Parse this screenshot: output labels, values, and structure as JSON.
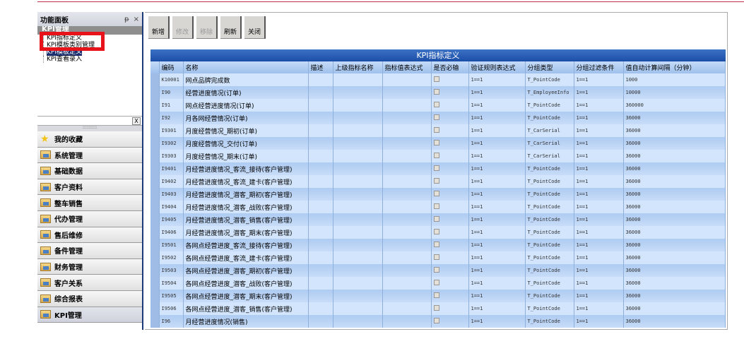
{
  "panel": {
    "title": "功能面板",
    "pin_icon": "pin-icon",
    "close_icon": "close-icon",
    "tree_title": "KPI管理",
    "tree": [
      "KPI指标定义",
      "KPI模板类别管理",
      "KPI模板定义",
      "KPI查看录入"
    ],
    "selected": 2,
    "filter_btn": "X",
    "splitter": "::::::::::"
  },
  "accordion": [
    "我的收藏",
    "系统管理",
    "基础数据",
    "客户资料",
    "整车销售",
    "代办管理",
    "售后维修",
    "备件管理",
    "财务管理",
    "客户关系",
    "综合报表",
    "KPI管理"
  ],
  "toolbar": {
    "add": "新增",
    "edit": "修改",
    "remove": "移除",
    "refresh": "刷新",
    "close": "关闭"
  },
  "grid": {
    "title": "KPI指标定义",
    "columns": [
      "编码",
      "名称",
      "描述",
      "上级指标名称",
      "指标值表达式",
      "是否必输",
      "验证规则表达式",
      "分组类型",
      "分组过滤条件",
      "值自动计算间隔（分钟）"
    ],
    "rows": [
      [
        "K10001",
        "网点品牌完成数",
        "1==1",
        "T_PointCode",
        "1==1",
        "1000"
      ],
      [
        "I90",
        "经营进度情况(订单)",
        "1==1",
        "T_EmployeeInfo",
        "1==1",
        "10000"
      ],
      [
        "I91",
        "网点经营进度情况(订单)",
        "1==1",
        "T_PointCode",
        "1==1",
        "360000"
      ],
      [
        "I92",
        "月各网经营情况(订单)",
        "1==1",
        "T_PointCode",
        "1==1",
        "36000"
      ],
      [
        "I9301",
        "月度经营情况_期初(订单)",
        "1==1",
        "T_CarSerial",
        "1==1",
        "36000"
      ],
      [
        "I9302",
        "月度经营情况_交付(订单)",
        "1==1",
        "T_CarSerial",
        "1==1",
        "36000"
      ],
      [
        "I9303",
        "月度经营情况_期末(订单)",
        "1==1",
        "T_CarSerial",
        "1==1",
        "36000"
      ],
      [
        "I9401",
        "月经营进度情况_客流_接待(客户管理)",
        "1==1",
        "T_PointCode",
        "1==1",
        "36000"
      ],
      [
        "I9402",
        "月经营进度情况_客流_建卡(客户管理)",
        "1==1",
        "T_PointCode",
        "1==1",
        "36000"
      ],
      [
        "I9403",
        "月经营进度情况_潜客_期初(客户管理)",
        "1==1",
        "T_PointCode",
        "1==1",
        "36000"
      ],
      [
        "I9404",
        "月经营进度情况_潜客_战败(客户管理)",
        "1==1",
        "T_PointCode",
        "1==1",
        "36000"
      ],
      [
        "I9405",
        "月经营进度情况_潜客_销售(客户管理)",
        "1==1",
        "T_PointCode",
        "1==1",
        "36000"
      ],
      [
        "I9406",
        "月经营进度情况_潜客_期末(客户管理)",
        "1==1",
        "T_PointCode",
        "1==1",
        "36000"
      ],
      [
        "I9501",
        "各网点经营进度_客流_接待(客户管理)",
        "1==1",
        "T_PointCode",
        "1==1",
        "36000"
      ],
      [
        "I9502",
        "各网点经营进度_客流_建卡(客户管理)",
        "1==1",
        "T_PointCode",
        "1==1",
        "36000"
      ],
      [
        "I9503",
        "各网点经营进度_潜客_期初(客户管理)",
        "1==1",
        "T_PointCode",
        "1==1",
        "36000"
      ],
      [
        "I9504",
        "各网点经营进度_潜客_战败(客户管理)",
        "1==1",
        "T_PointCode",
        "1==1",
        "36000"
      ],
      [
        "I9505",
        "各网点经营进度_潜客_期末(客户管理)",
        "1==1",
        "T_PointCode",
        "1==1",
        "36000"
      ],
      [
        "I9506",
        "各网点经营进度_潜客_销售(客户管理)",
        "1==1",
        "T_PointCode",
        "1==1",
        "36000"
      ],
      [
        "I96",
        "月经营进度情况(销售)",
        "1==1",
        "T_PointCode",
        "1==1",
        "36000"
      ]
    ]
  }
}
